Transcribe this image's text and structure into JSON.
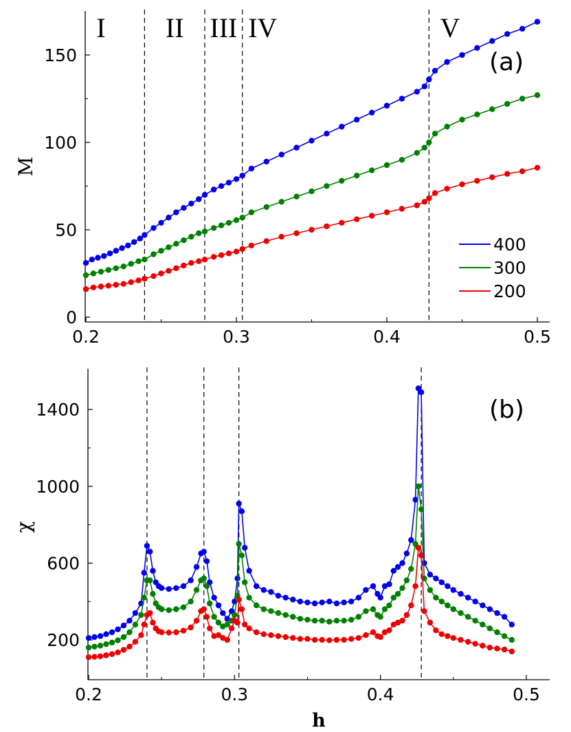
{
  "chart_data": [
    {
      "type": "line",
      "panel_label": "(a)",
      "xlabel": "",
      "ylabel": "M",
      "xlim": [
        0.2,
        0.5
      ],
      "ylim": [
        0,
        172
      ],
      "xticks": [
        0.2,
        0.3,
        0.4,
        0.5
      ],
      "xtick_labels": [
        "0.2",
        "0.3",
        "0.4",
        "0.5"
      ],
      "yticks": [
        0,
        50,
        100,
        150
      ],
      "ytick_labels": [
        "0",
        "50",
        "100",
        "150"
      ],
      "vlines": [
        0.239,
        0.279,
        0.304,
        0.428
      ],
      "regions": [
        {
          "label": "I",
          "x": 0.21
        },
        {
          "label": "II",
          "x": 0.259
        },
        {
          "label": "III",
          "x": 0.2915
        },
        {
          "label": "IV",
          "x": 0.3175
        },
        {
          "label": "V",
          "x": 0.442
        }
      ],
      "legend": {
        "position": "lower-right",
        "entries": [
          "400",
          "300",
          "200"
        ]
      },
      "series": [
        {
          "name": "400",
          "color": "#0000ee",
          "x": [
            0.2,
            0.204,
            0.208,
            0.212,
            0.216,
            0.22,
            0.224,
            0.228,
            0.232,
            0.236,
            0.239,
            0.245,
            0.25,
            0.255,
            0.26,
            0.265,
            0.27,
            0.275,
            0.279,
            0.285,
            0.29,
            0.295,
            0.3,
            0.304,
            0.31,
            0.32,
            0.33,
            0.34,
            0.35,
            0.36,
            0.37,
            0.38,
            0.39,
            0.4,
            0.41,
            0.42,
            0.425,
            0.428,
            0.432,
            0.44,
            0.45,
            0.46,
            0.47,
            0.48,
            0.49,
            0.5
          ],
          "y": [
            31,
            33,
            34,
            35,
            36.5,
            38,
            39.5,
            41,
            43,
            45,
            47,
            51,
            54,
            57,
            60,
            62.5,
            65,
            67.5,
            70,
            73,
            75,
            77,
            79,
            81,
            85,
            89,
            93,
            97,
            101,
            105,
            109,
            113,
            117,
            121,
            125,
            129,
            132,
            136,
            141,
            146,
            150,
            154,
            158,
            162,
            165,
            169
          ]
        },
        {
          "name": "300",
          "color": "#008000",
          "x": [
            0.2,
            0.205,
            0.21,
            0.215,
            0.22,
            0.225,
            0.23,
            0.235,
            0.239,
            0.245,
            0.25,
            0.255,
            0.26,
            0.265,
            0.27,
            0.275,
            0.279,
            0.285,
            0.29,
            0.295,
            0.3,
            0.304,
            0.31,
            0.32,
            0.33,
            0.34,
            0.35,
            0.36,
            0.37,
            0.38,
            0.39,
            0.4,
            0.41,
            0.42,
            0.425,
            0.428,
            0.432,
            0.44,
            0.45,
            0.46,
            0.47,
            0.48,
            0.49,
            0.5
          ],
          "y": [
            24,
            25,
            26,
            27,
            28,
            29,
            30.5,
            32,
            33,
            36,
            38,
            40,
            42,
            44,
            46,
            48,
            49,
            51,
            52.5,
            54,
            55.5,
            57,
            60,
            63,
            66,
            69,
            72,
            75,
            78,
            81,
            84,
            87,
            90,
            94,
            97,
            100,
            105,
            109,
            113,
            116,
            119,
            122,
            125,
            127
          ]
        },
        {
          "name": "200",
          "color": "#ee0000",
          "x": [
            0.2,
            0.205,
            0.21,
            0.215,
            0.22,
            0.225,
            0.23,
            0.235,
            0.239,
            0.245,
            0.25,
            0.255,
            0.26,
            0.265,
            0.27,
            0.275,
            0.279,
            0.285,
            0.29,
            0.295,
            0.3,
            0.304,
            0.31,
            0.32,
            0.33,
            0.34,
            0.35,
            0.36,
            0.37,
            0.38,
            0.39,
            0.4,
            0.41,
            0.42,
            0.425,
            0.428,
            0.432,
            0.44,
            0.45,
            0.46,
            0.47,
            0.48,
            0.49,
            0.5
          ],
          "y": [
            16,
            17,
            17.5,
            18,
            18.5,
            19,
            20,
            21,
            22,
            23.5,
            25,
            26.5,
            28,
            29.5,
            31,
            32,
            33,
            34.5,
            35.5,
            36.5,
            37.5,
            39,
            41,
            43.5,
            46,
            48,
            50,
            52,
            54,
            56,
            58,
            60,
            62,
            64,
            66,
            68,
            71,
            73.5,
            76,
            78,
            80,
            82,
            83.5,
            85.5
          ]
        }
      ]
    },
    {
      "type": "line",
      "panel_label": "(b)",
      "xlabel": "h",
      "ylabel": "χ",
      "xlim": [
        0.2,
        0.5
      ],
      "ylim": [
        50,
        1580
      ],
      "xticks": [
        0.2,
        0.3,
        0.4,
        0.5
      ],
      "xtick_labels": [
        "0.2",
        "0.3",
        "0.4",
        "0.5"
      ],
      "yticks": [
        200,
        600,
        1000,
        1400
      ],
      "ytick_labels": [
        "200",
        "600",
        "1000",
        "1400"
      ],
      "vlines": [
        0.24,
        0.279,
        0.303,
        0.428
      ],
      "series": [
        {
          "name": "400",
          "color": "#0000ee",
          "x": [
            0.2,
            0.204,
            0.208,
            0.212,
            0.216,
            0.22,
            0.224,
            0.228,
            0.232,
            0.236,
            0.238,
            0.24,
            0.242,
            0.244,
            0.246,
            0.248,
            0.25,
            0.255,
            0.26,
            0.265,
            0.27,
            0.274,
            0.277,
            0.279,
            0.281,
            0.283,
            0.286,
            0.289,
            0.292,
            0.295,
            0.298,
            0.3,
            0.302,
            0.303,
            0.305,
            0.307,
            0.31,
            0.315,
            0.32,
            0.325,
            0.33,
            0.335,
            0.34,
            0.345,
            0.35,
            0.355,
            0.36,
            0.365,
            0.37,
            0.375,
            0.38,
            0.385,
            0.39,
            0.395,
            0.398,
            0.4,
            0.403,
            0.406,
            0.409,
            0.412,
            0.415,
            0.418,
            0.421,
            0.424,
            0.426,
            0.428,
            0.43,
            0.434,
            0.438,
            0.442,
            0.446,
            0.45,
            0.455,
            0.46,
            0.465,
            0.47,
            0.475,
            0.48,
            0.485,
            0.49
          ],
          "y": [
            210,
            215,
            220,
            230,
            240,
            255,
            275,
            300,
            340,
            390,
            550,
            690,
            660,
            560,
            500,
            480,
            470,
            465,
            470,
            480,
            510,
            580,
            650,
            660,
            610,
            500,
            420,
            380,
            340,
            310,
            350,
            400,
            520,
            910,
            870,
            680,
            560,
            480,
            460,
            450,
            430,
            420,
            410,
            400,
            395,
            390,
            395,
            400,
            390,
            395,
            400,
            420,
            460,
            480,
            440,
            420,
            480,
            490,
            560,
            580,
            600,
            650,
            720,
            930,
            1510,
            1490,
            600,
            540,
            520,
            500,
            480,
            460,
            440,
            420,
            400,
            380,
            360,
            340,
            320,
            280
          ]
        },
        {
          "name": "300",
          "color": "#008000",
          "x": [
            0.2,
            0.204,
            0.208,
            0.212,
            0.216,
            0.22,
            0.224,
            0.228,
            0.232,
            0.236,
            0.238,
            0.24,
            0.242,
            0.244,
            0.246,
            0.248,
            0.25,
            0.255,
            0.26,
            0.265,
            0.27,
            0.274,
            0.277,
            0.279,
            0.281,
            0.283,
            0.286,
            0.289,
            0.292,
            0.295,
            0.298,
            0.3,
            0.302,
            0.303,
            0.305,
            0.307,
            0.31,
            0.315,
            0.32,
            0.325,
            0.33,
            0.335,
            0.34,
            0.345,
            0.35,
            0.355,
            0.36,
            0.365,
            0.37,
            0.375,
            0.38,
            0.385,
            0.39,
            0.395,
            0.398,
            0.4,
            0.403,
            0.406,
            0.409,
            0.412,
            0.415,
            0.418,
            0.421,
            0.424,
            0.426,
            0.428,
            0.43,
            0.434,
            0.438,
            0.442,
            0.446,
            0.45,
            0.455,
            0.46,
            0.465,
            0.47,
            0.475,
            0.48,
            0.485,
            0.49
          ],
          "y": [
            160,
            165,
            170,
            178,
            186,
            198,
            215,
            240,
            280,
            330,
            420,
            510,
            510,
            440,
            390,
            370,
            360,
            355,
            360,
            370,
            400,
            460,
            510,
            520,
            480,
            390,
            320,
            290,
            270,
            280,
            300,
            330,
            430,
            700,
            640,
            500,
            420,
            380,
            360,
            350,
            340,
            330,
            320,
            310,
            305,
            300,
            300,
            295,
            300,
            300,
            305,
            320,
            350,
            360,
            330,
            320,
            360,
            380,
            420,
            440,
            470,
            510,
            570,
            700,
            1000,
            880,
            520,
            460,
            420,
            400,
            380,
            360,
            340,
            320,
            300,
            280,
            260,
            240,
            220,
            200
          ]
        },
        {
          "name": "200",
          "color": "#ee0000",
          "x": [
            0.2,
            0.204,
            0.208,
            0.212,
            0.216,
            0.22,
            0.224,
            0.228,
            0.232,
            0.236,
            0.238,
            0.24,
            0.242,
            0.244,
            0.246,
            0.248,
            0.25,
            0.255,
            0.26,
            0.265,
            0.27,
            0.274,
            0.277,
            0.279,
            0.281,
            0.283,
            0.286,
            0.289,
            0.292,
            0.295,
            0.298,
            0.3,
            0.302,
            0.303,
            0.305,
            0.307,
            0.31,
            0.315,
            0.32,
            0.325,
            0.33,
            0.335,
            0.34,
            0.345,
            0.35,
            0.355,
            0.36,
            0.365,
            0.37,
            0.375,
            0.38,
            0.385,
            0.39,
            0.395,
            0.398,
            0.4,
            0.403,
            0.406,
            0.409,
            0.412,
            0.415,
            0.418,
            0.421,
            0.424,
            0.426,
            0.428,
            0.43,
            0.434,
            0.438,
            0.442,
            0.446,
            0.45,
            0.455,
            0.46,
            0.465,
            0.47,
            0.475,
            0.48,
            0.485,
            0.49
          ],
          "y": [
            110,
            112,
            115,
            120,
            126,
            135,
            148,
            165,
            190,
            225,
            280,
            330,
            340,
            290,
            260,
            245,
            240,
            238,
            240,
            248,
            265,
            300,
            350,
            360,
            320,
            260,
            220,
            225,
            210,
            200,
            260,
            300,
            290,
            410,
            360,
            280,
            260,
            240,
            230,
            225,
            220,
            215,
            210,
            205,
            205,
            200,
            200,
            198,
            200,
            200,
            205,
            210,
            225,
            240,
            220,
            215,
            240,
            250,
            280,
            290,
            300,
            330,
            380,
            480,
            680,
            640,
            350,
            290,
            250,
            230,
            220,
            210,
            200,
            190,
            180,
            170,
            160,
            155,
            150,
            140
          ]
        }
      ]
    }
  ]
}
